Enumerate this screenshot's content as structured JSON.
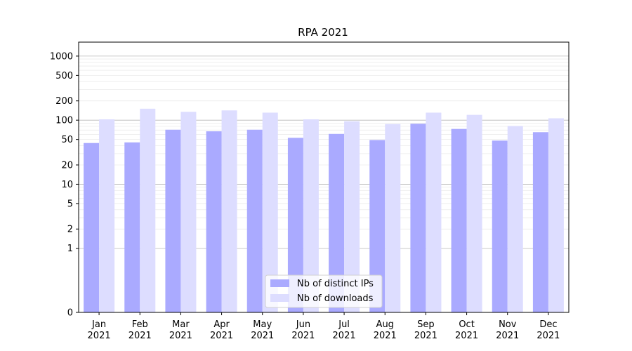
{
  "chart_data": {
    "type": "bar",
    "title": "RPA 2021",
    "xlabel": "",
    "ylabel": "",
    "scale": "symlog",
    "ylim": [
      0,
      1300
    ],
    "grid": "horizontal",
    "legend_position": "bottom-center",
    "categories": [
      [
        "Jan",
        "2021"
      ],
      [
        "Feb",
        "2021"
      ],
      [
        "Mar",
        "2021"
      ],
      [
        "Apr",
        "2021"
      ],
      [
        "May",
        "2021"
      ],
      [
        "Jun",
        "2021"
      ],
      [
        "Jul",
        "2021"
      ],
      [
        "Aug",
        "2021"
      ],
      [
        "Sep",
        "2021"
      ],
      [
        "Oct",
        "2021"
      ],
      [
        "Nov",
        "2021"
      ],
      [
        "Dec",
        "2021"
      ]
    ],
    "y_ticks": [
      {
        "value": 0,
        "label": "0"
      },
      {
        "value": 1,
        "label": "1"
      },
      {
        "value": 2,
        "label": "2"
      },
      {
        "value": 5,
        "label": "5"
      },
      {
        "value": 10,
        "label": "10"
      },
      {
        "value": 20,
        "label": "20"
      },
      {
        "value": 50,
        "label": "50"
      },
      {
        "value": 100,
        "label": "100"
      },
      {
        "value": 200,
        "label": "200"
      },
      {
        "value": 500,
        "label": "500"
      },
      {
        "value": 1000,
        "label": "1000"
      }
    ],
    "series": [
      {
        "name": "Nb of distinct IPs",
        "color": "#aaaaff",
        "values": [
          44,
          45,
          71,
          67,
          71,
          53,
          61,
          49,
          88,
          73,
          48,
          65
        ]
      },
      {
        "name": "Nb of downloads",
        "color": "#ddddff",
        "values": [
          103,
          151,
          135,
          142,
          131,
          103,
          96,
          87,
          131,
          121,
          81,
          107
        ]
      }
    ]
  }
}
